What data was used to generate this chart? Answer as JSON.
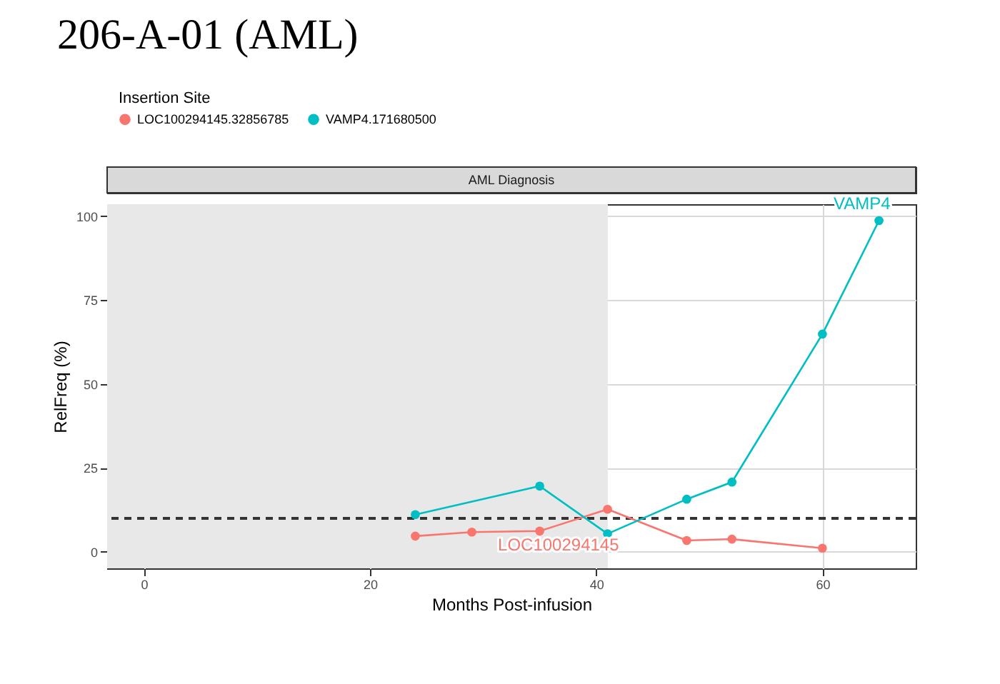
{
  "chart_data": {
    "type": "line",
    "title": "206-A-01 (AML)",
    "subtitle": "AML Diagnosis",
    "xlabel": "Months Post-infusion",
    "ylabel": "RelFreq (%)",
    "legend_title": "Insertion Site",
    "legend": "top",
    "marker": "circle",
    "line_style": "solid",
    "grid": true,
    "xlim": [
      -3.25,
      68.25
    ],
    "ylim": [
      -4.9,
      103.6
    ],
    "xticks": [
      0,
      20,
      40,
      60
    ],
    "yticks": [
      0,
      25,
      50,
      75,
      100
    ],
    "series": [
      {
        "name": "LOC100294145.32856785",
        "color": "#f8766d",
        "x": [
          24,
          29,
          35,
          41,
          48,
          52,
          60
        ],
        "values": [
          4.7,
          5.9,
          6.2,
          12.7,
          3.4,
          3.8,
          1.1
        ]
      },
      {
        "name": "VAMP4.171680500",
        "color": "#00bfc4",
        "x": [
          24,
          35,
          41,
          48,
          52,
          60,
          65
        ],
        "values": [
          11.1,
          19.6,
          5.4,
          15.7,
          20.8,
          64.9,
          98.7
        ]
      }
    ],
    "annotations": [
      {
        "text": "LOC100294145",
        "x": 41,
        "y": 12.7
      },
      {
        "text": "VAMP4",
        "x": 65,
        "y": 98.7
      }
    ],
    "ref_lines": [
      {
        "axis": "y",
        "value": 10,
        "line_style": "dashed",
        "color": "#333333"
      }
    ],
    "bands": [
      {
        "axis": "x",
        "from": -3.25,
        "to": 41,
        "color": "#e8e8e8"
      }
    ]
  }
}
